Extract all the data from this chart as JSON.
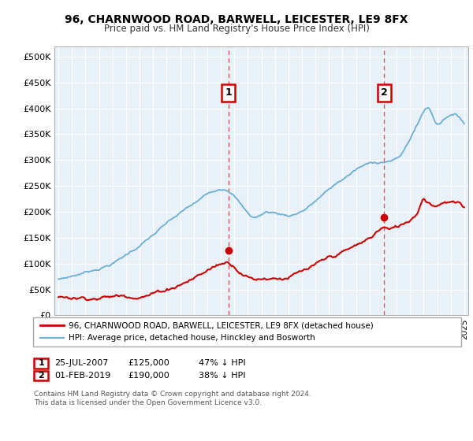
{
  "title": "96, CHARNWOOD ROAD, BARWELL, LEICESTER, LE9 8FX",
  "subtitle": "Price paid vs. HM Land Registry's House Price Index (HPI)",
  "ylabel_ticks": [
    "£0",
    "£50K",
    "£100K",
    "£150K",
    "£200K",
    "£250K",
    "£300K",
    "£350K",
    "£400K",
    "£450K",
    "£500K"
  ],
  "ytick_values": [
    0,
    50000,
    100000,
    150000,
    200000,
    250000,
    300000,
    350000,
    400000,
    450000,
    500000
  ],
  "xlim_start": 1994.7,
  "xlim_end": 2025.3,
  "ylim": [
    0,
    520000
  ],
  "sale1_date": 2007.56,
  "sale1_price": 125000,
  "sale1_label": "1",
  "sale2_date": 2019.08,
  "sale2_price": 190000,
  "sale2_label": "2",
  "legend_line1": "96, CHARNWOOD ROAD, BARWELL, LEICESTER, LE9 8FX (detached house)",
  "legend_line2": "HPI: Average price, detached house, Hinckley and Bosworth",
  "table_row1": [
    "1",
    "25-JUL-2007",
    "£125,000",
    "47% ↓ HPI"
  ],
  "table_row2": [
    "2",
    "01-FEB-2019",
    "£190,000",
    "38% ↓ HPI"
  ],
  "footer": "Contains HM Land Registry data © Crown copyright and database right 2024.\nThis data is licensed under the Open Government Licence v3.0.",
  "hpi_color": "#6baed6",
  "price_color": "#cc0000",
  "vline_color": "#e84040",
  "plot_bg_color": "#e8f0f8",
  "grid_color": "#ffffff",
  "background_color": "#ffffff"
}
